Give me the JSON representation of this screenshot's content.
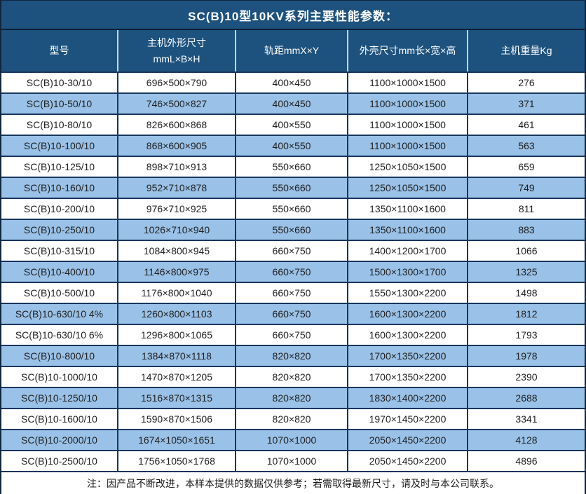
{
  "title": "SC(B)10型10KV系列主要性能参数：",
  "colors": {
    "header_navy": "#1d527e",
    "row_alt_blue": "#9ac1e7",
    "grid_border": "#17365d",
    "header_divider": "#c9d6e2",
    "title_text": "#ffffff",
    "cell_text": "#1f1f1f"
  },
  "table": {
    "columns": [
      {
        "key": "model",
        "label": "型号"
      },
      {
        "key": "body_size",
        "label": "主机外形尺寸",
        "label2": "mmL×B×H"
      },
      {
        "key": "gauge",
        "label": "轨距mmX×Y"
      },
      {
        "key": "shell_size",
        "label": "外壳尺寸mm长×宽×高"
      },
      {
        "key": "weight",
        "label": "主机重量Kg"
      }
    ],
    "rows": [
      {
        "model": "SC(B)10-30/10",
        "body_size": "696×500×790",
        "gauge": "400×450",
        "shell_size": "1100×1000×1500",
        "weight": "276"
      },
      {
        "model": "SC(B)10-50/10",
        "body_size": "746×500×827",
        "gauge": "400×450",
        "shell_size": "1100×1000×1500",
        "weight": "371"
      },
      {
        "model": "SC(B)10-80/10",
        "body_size": "826×600×868",
        "gauge": "400×550",
        "shell_size": "1100×1000×1500",
        "weight": "461"
      },
      {
        "model": "SC(B)10-100/10",
        "body_size": "868×600×905",
        "gauge": "400×550",
        "shell_size": "1100×1000×1500",
        "weight": "563"
      },
      {
        "model": "SC(B)10-125/10",
        "body_size": "898×710×913",
        "gauge": "550×660",
        "shell_size": "1250×1050×1500",
        "weight": "659"
      },
      {
        "model": "SC(B)10-160/10",
        "body_size": "952×710×878",
        "gauge": "550×660",
        "shell_size": "1250×1050×1500",
        "weight": "749"
      },
      {
        "model": "SC(B)10-200/10",
        "body_size": "976×710×925",
        "gauge": "550×660",
        "shell_size": "1350×1100×1600",
        "weight": "811"
      },
      {
        "model": "SC(B)10-250/10",
        "body_size": "1026×710×940",
        "gauge": "550×660",
        "shell_size": "1350×1100×1600",
        "weight": "883"
      },
      {
        "model": "SC(B)10-315/10",
        "body_size": "1084×800×945",
        "gauge": "660×750",
        "shell_size": "1400×1200×1700",
        "weight": "1066"
      },
      {
        "model": "SC(B)10-400/10",
        "body_size": "1146×800×975",
        "gauge": "660×750",
        "shell_size": "1500×1300×1700",
        "weight": "1325"
      },
      {
        "model": "SC(B)10-500/10",
        "body_size": "1176×800×1040",
        "gauge": "660×750",
        "shell_size": "1550×1300×2200",
        "weight": "1498"
      },
      {
        "model": "SC(B)10-630/10 4%",
        "body_size": "1260×800×1103",
        "gauge": "660×750",
        "shell_size": "1600×1300×2200",
        "weight": "1812"
      },
      {
        "model": "SC(B)10-630/10 6%",
        "body_size": "1296×800×1065",
        "gauge": "660×750",
        "shell_size": "1600×1300×2200",
        "weight": "1793"
      },
      {
        "model": "SC(B)10-800/10",
        "body_size": "1384×870×1118",
        "gauge": "820×820",
        "shell_size": "1700×1350×2200",
        "weight": "1978"
      },
      {
        "model": "SC(B)10-1000/10",
        "body_size": "1470×870×1205",
        "gauge": "820×820",
        "shell_size": "1700×1350×2200",
        "weight": "2390"
      },
      {
        "model": "SC(B)10-1250/10",
        "body_size": "1516×870×1315",
        "gauge": "820×820",
        "shell_size": "1830×1400×2200",
        "weight": "2688"
      },
      {
        "model": "SC(B)10-1600/10",
        "body_size": "1590×870×1506",
        "gauge": "820×820",
        "shell_size": "1970×1450×2200",
        "weight": "3341"
      },
      {
        "model": "SC(B)10-2000/10",
        "body_size": "1674×1050×1651",
        "gauge": "1070×1000",
        "shell_size": "2050×1450×2200",
        "weight": "4128"
      },
      {
        "model": "SC(B)10-2500/10",
        "body_size": "1756×1050×1768",
        "gauge": "1070×1000",
        "shell_size": "2050×1450×2200",
        "weight": "4896"
      }
    ]
  },
  "footer": {
    "note": "注：因产品不断改进，本样本提供的数据仅供参考；若需取得最新尺寸，请及时与本公司联系。"
  }
}
